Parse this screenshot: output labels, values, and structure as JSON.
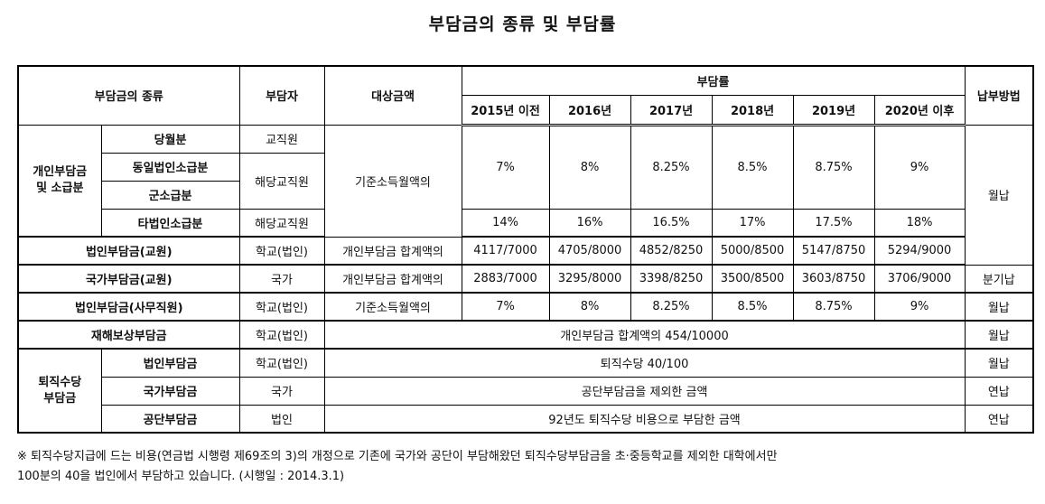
{
  "title": "부담금의 종류 및 부담률",
  "header": {
    "kind": "부담금의 종류",
    "payer": "부담자",
    "target": "대상금액",
    "rate": "부담률",
    "years": [
      "2015년 이전",
      "2016년",
      "2017년",
      "2018년",
      "2019년",
      "2020년 이후"
    ],
    "method": "납부방법"
  },
  "personal": {
    "group": "개인부담금\n및 소급분",
    "sub": [
      "당월분",
      "동일법인소급분",
      "군소급분",
      "타법인소급분"
    ],
    "payer_a": "교직원",
    "payer_b": "해당교직원",
    "payer_c": "해당교직원",
    "target": "기준소득월액의",
    "rates_a": [
      "7%",
      "8%",
      "8.25%",
      "8.5%",
      "8.75%",
      "9%"
    ],
    "rates_b": [
      "14%",
      "16%",
      "16.5%",
      "17%",
      "17.5%",
      "18%"
    ],
    "method": "월납"
  },
  "corp_teacher": {
    "kind": "법인부담금(교원)",
    "payer": "학교(법인)",
    "target": "개인부담금 합계액의",
    "rates": [
      "4117/7000",
      "4705/8000",
      "4852/8250",
      "5000/8500",
      "5147/8750",
      "5294/9000"
    ]
  },
  "nation_teacher": {
    "kind": "국가부담금(교원)",
    "payer": "국가",
    "target": "개인부담금 합계액의",
    "rates": [
      "2883/7000",
      "3295/8000",
      "3398/8250",
      "3500/8500",
      "3603/8750",
      "3706/9000"
    ],
    "method": "분기납"
  },
  "corp_staff": {
    "kind": "법인부담금(사무직원)",
    "payer": "학교(법인)",
    "target": "기준소득월액의",
    "rates": [
      "7%",
      "8%",
      "8.25%",
      "8.5%",
      "8.75%",
      "9%"
    ],
    "method": "월납"
  },
  "disaster": {
    "kind": "재해보상부담금",
    "payer": "학교(법인)",
    "rate": "개인부담금 합계액의 454/10000",
    "method": "월납"
  },
  "retire": {
    "group": "퇴직수당\n부담금",
    "rows": [
      {
        "kind": "법인부담금",
        "payer": "학교(법인)",
        "rate": "퇴직수당 40/100",
        "method": "월납"
      },
      {
        "kind": "국가부담금",
        "payer": "국가",
        "rate": "공단부담금을 제외한 금액",
        "method": "연납"
      },
      {
        "kind": "공단부담금",
        "payer": "법인",
        "rate": "92년도 퇴직수당 비용으로 부담한 금액",
        "method": "연납"
      }
    ]
  },
  "footnote_line1": "※ 퇴직수당지급에 드는 비용(연금법 시행령 제69조의 3)의 개정으로 기존에 국가와 공단이 부담해왔던 퇴직수당부담금을 초·중등학교를 제외한 대학에서만",
  "footnote_line2": "100분의 40을 법인에서 부담하고 있습니다. (시행일 : 2014.3.1)"
}
